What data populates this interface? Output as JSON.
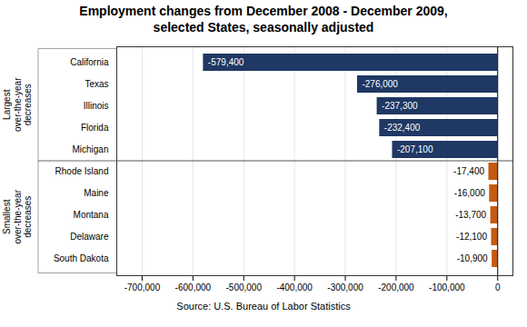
{
  "chart_data": {
    "type": "bar",
    "orientation": "horizontal",
    "title": "Employment changes from December 2008 - December 2009,\nselected States, seasonally adjusted",
    "categories": [
      "California",
      "Texas",
      "Illinois",
      "Florida",
      "Michigan",
      "Rhode Island",
      "Maine",
      "Montana",
      "Delaware",
      "South Dakota"
    ],
    "values": [
      -579400,
      -276000,
      -237300,
      -232400,
      -207100,
      -17400,
      -16000,
      -13700,
      -12100,
      -10900
    ],
    "value_labels": [
      "-579,400",
      "-276,000",
      "-237,300",
      "-232,400",
      "-207,100",
      "-17,400",
      "-16,000",
      "-13,700",
      "-12,100",
      "-10,900"
    ],
    "colors": [
      "#1F3864",
      "#1F3864",
      "#1F3864",
      "#1F3864",
      "#1F3864",
      "#C55A11",
      "#C55A11",
      "#C55A11",
      "#C55A11",
      "#C55A11"
    ],
    "data_labels": true,
    "xlim": [
      -750000,
      30000
    ],
    "xticks": [
      {
        "value": -700000,
        "label": "-700,000"
      },
      {
        "value": -600000,
        "label": "-600,000"
      },
      {
        "value": -500000,
        "label": "-500,000"
      },
      {
        "value": -400000,
        "label": "-400,000"
      },
      {
        "value": -300000,
        "label": "-300,000"
      },
      {
        "value": -200000,
        "label": "-200,000"
      },
      {
        "value": -100000,
        "label": "-100,000"
      },
      0
    ],
    "grid": true,
    "groups": [
      {
        "label": "Largest\nover-the-year\ndecreases",
        "categories": [
          "California",
          "Texas",
          "Illinois",
          "Florida",
          "Michigan"
        ]
      },
      {
        "label": "Smallest\nover-the-year\ndecreases",
        "categories": [
          "Rhode Island",
          "Maine",
          "Montana",
          "Delaware",
          "South Dakota"
        ]
      }
    ],
    "source": "Source: U.S. Bureau of Labor Statistics"
  }
}
